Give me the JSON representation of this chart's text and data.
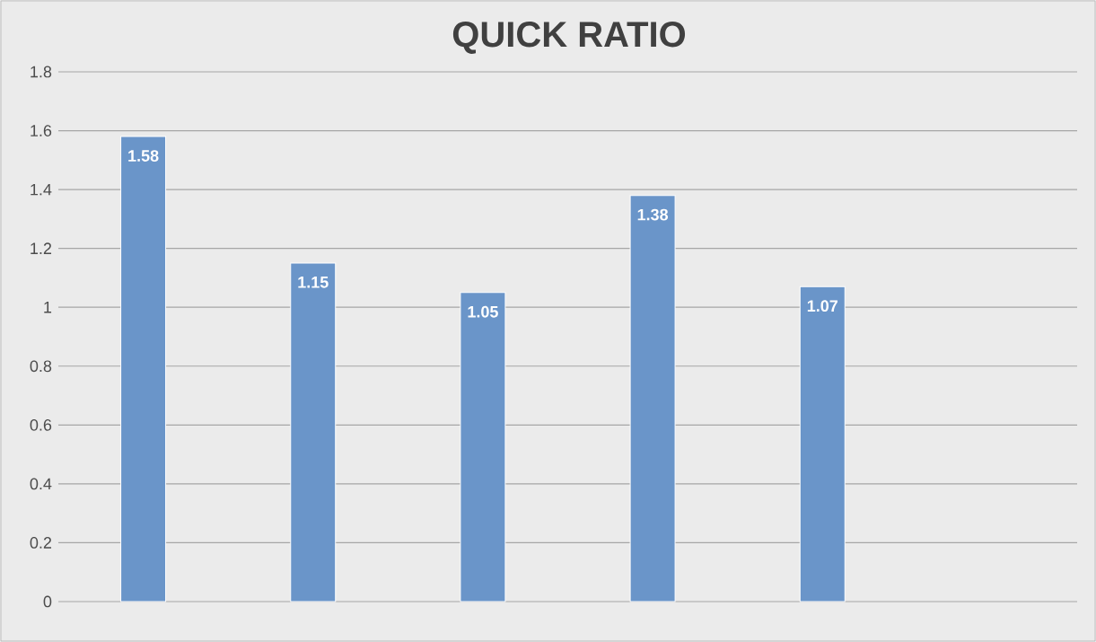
{
  "chart_data": {
    "type": "bar",
    "title": "QUICK RATIO",
    "categories": [
      null,
      null,
      null,
      null,
      null,
      null
    ],
    "values": [
      1.58,
      1.15,
      1.05,
      1.38,
      1.07,
      null
    ],
    "color": "#6a95c9",
    "ylim": [
      0,
      1.8
    ],
    "yticks": [
      0,
      0.2,
      0.4,
      0.6,
      0.8,
      1,
      1.2,
      1.4,
      1.6,
      1.8
    ],
    "grid": "y",
    "data_labels": true
  }
}
